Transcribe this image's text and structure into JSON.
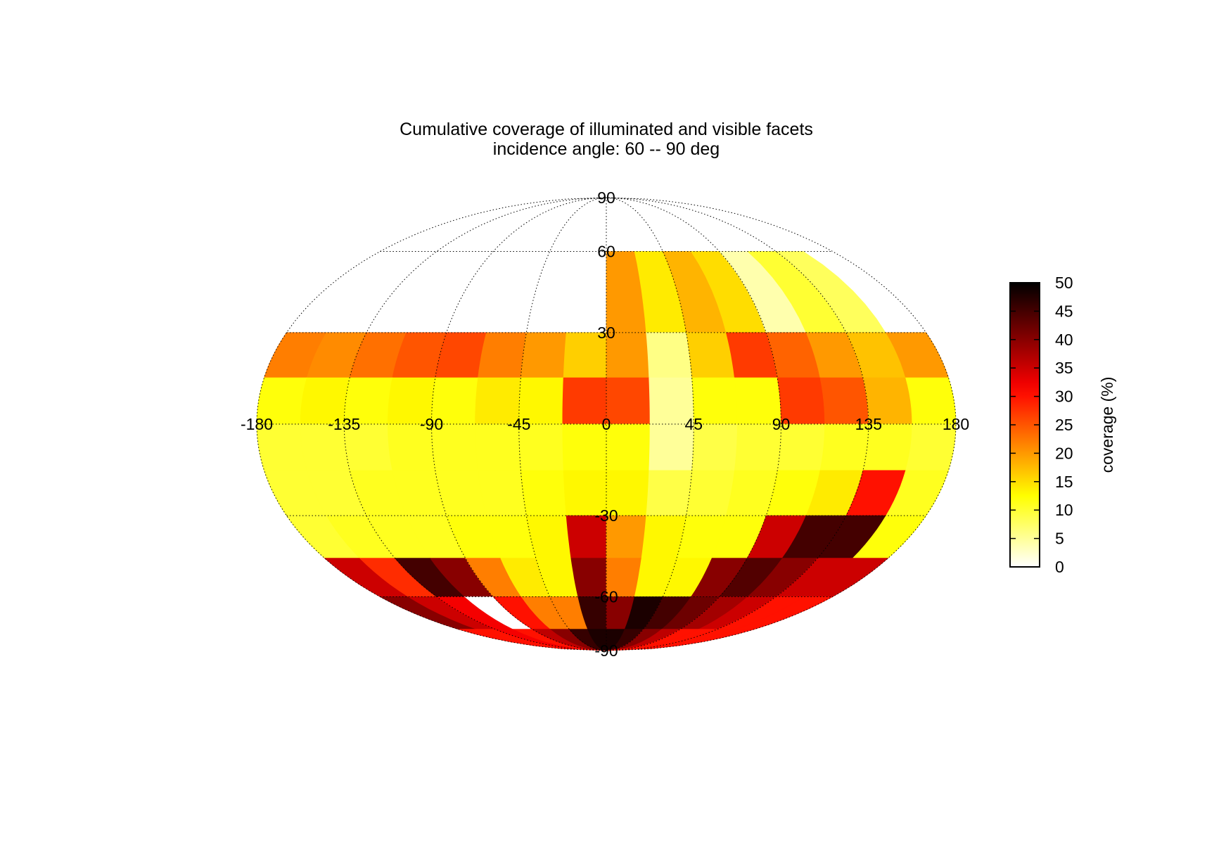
{
  "chart_data": {
    "type": "heatmap",
    "projection": "mollweide",
    "title": "Cumulative coverage of illuminated and visible facets",
    "subtitle": "incidence angle: 60 -- 90 deg",
    "colorbar": {
      "label": "coverage (%)",
      "min": 0,
      "max": 50,
      "ticks": [
        "0",
        "5",
        "10",
        "15",
        "20",
        "25",
        "30",
        "35",
        "40",
        "45",
        "50"
      ],
      "colormap": "hot (reversed)"
    },
    "lon_ticks": [
      "-180",
      "-135",
      "-90",
      "-45",
      "0",
      "45",
      "90",
      "135",
      "180"
    ],
    "lat_ticks": [
      "90",
      "60",
      "30",
      "-30",
      "-60",
      "-90"
    ],
    "lon_range": [
      -180,
      180
    ],
    "lat_range": [
      -90,
      90
    ],
    "grid": true,
    "lon_bin_deg": 22.5,
    "lat_bins": [
      {
        "lat_range": [
          60,
          90
        ],
        "values": [
          0,
          0,
          0,
          0,
          0,
          0,
          0,
          0,
          0,
          0,
          0,
          0,
          0,
          0,
          0,
          0
        ]
      },
      {
        "lat_range": [
          30,
          60
        ],
        "values": [
          0,
          0,
          0,
          0,
          0,
          0,
          0,
          0,
          20,
          14,
          18,
          15,
          4,
          10,
          8,
          0
        ]
      },
      {
        "lat_range": [
          15,
          30
        ],
        "values": [
          22,
          21,
          23,
          25,
          26,
          22,
          20,
          16,
          20,
          6,
          16,
          27,
          24,
          20,
          17,
          20
        ]
      },
      {
        "lat_range": [
          0,
          15
        ],
        "values": [
          12,
          13,
          12,
          13,
          12,
          14,
          13,
          27,
          26,
          5,
          12,
          12,
          27,
          25,
          18,
          12
        ]
      },
      {
        "lat_range": [
          -15,
          0
        ],
        "values": [
          10,
          10,
          10,
          11,
          11,
          11,
          11,
          12,
          12,
          5,
          9,
          10,
          10,
          11,
          11,
          10
        ]
      },
      {
        "lat_range": [
          -30,
          -15
        ],
        "values": [
          10,
          10,
          11,
          11,
          11,
          11,
          12,
          13,
          13,
          9,
          10,
          11,
          12,
          14,
          30,
          11
        ]
      },
      {
        "lat_range": [
          -45,
          -30
        ],
        "values": [
          10,
          11,
          11,
          11,
          12,
          12,
          13,
          35,
          20,
          13,
          12,
          12,
          35,
          45,
          45,
          12
        ]
      },
      {
        "lat_range": [
          -60,
          -45
        ],
        "values": [
          35,
          28,
          45,
          40,
          22,
          14,
          13,
          40,
          22,
          13,
          13,
          40,
          44,
          40,
          35,
          35
        ]
      },
      {
        "lat_range": [
          -75,
          -60
        ],
        "values": [
          40,
          35,
          32,
          0,
          30,
          22,
          22,
          46,
          40,
          48,
          45,
          42,
          38,
          35,
          30,
          30
        ]
      },
      {
        "lat_range": [
          -90,
          -75
        ],
        "values": [
          30,
          30,
          32,
          30,
          36,
          40,
          46,
          48,
          48,
          46,
          40,
          36,
          30,
          30,
          30,
          30
        ]
      }
    ]
  }
}
